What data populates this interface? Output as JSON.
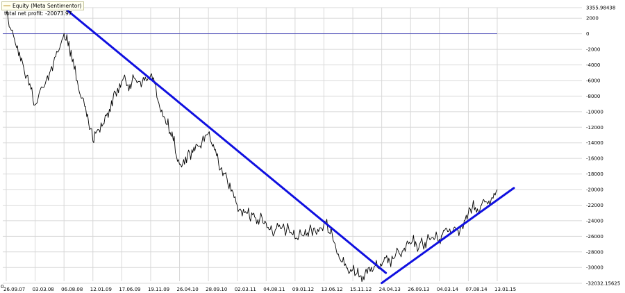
{
  "legend": {
    "label": "Equity (Meta Sentimentor)",
    "color": "#b8860b"
  },
  "summary": {
    "total_net_profit_label": "total net profit: -20073.97"
  },
  "corner_marker": "0",
  "colors": {
    "equity": "#000000",
    "trend": "#1010e0",
    "zero_line": "#2b2bb0",
    "grid": "#d8d8d8"
  },
  "chart_data": {
    "type": "line",
    "title": "",
    "xlabel": "",
    "ylabel": "",
    "ylim": [
      -32032.15625,
      3355.98438
    ],
    "grid": true,
    "legend_position": "top-left",
    "y_axis_labels": [
      {
        "value": 3355.98438,
        "text": "3355.98438"
      },
      {
        "value": 2000,
        "text": "2000"
      },
      {
        "value": 0,
        "text": "0"
      },
      {
        "value": -2000,
        "text": "-2000"
      },
      {
        "value": -4000,
        "text": "-4000"
      },
      {
        "value": -6000,
        "text": "-6000"
      },
      {
        "value": -8000,
        "text": "-8000"
      },
      {
        "value": -10000,
        "text": "-10000"
      },
      {
        "value": -12000,
        "text": "-12000"
      },
      {
        "value": -14000,
        "text": "-14000"
      },
      {
        "value": -16000,
        "text": "-16000"
      },
      {
        "value": -18000,
        "text": "-18000"
      },
      {
        "value": -20000,
        "text": "-20000"
      },
      {
        "value": -22000,
        "text": "-22000"
      },
      {
        "value": -24000,
        "text": "-24000"
      },
      {
        "value": -26000,
        "text": "-26000"
      },
      {
        "value": -28000,
        "text": "-28000"
      },
      {
        "value": -30000,
        "text": "-30000"
      },
      {
        "value": -32032.15625,
        "text": "-32032.15625"
      }
    ],
    "x_tick_labels": [
      "26.09.07",
      "03.03.08",
      "06.08.08",
      "12.01.09",
      "17.06.09",
      "19.11.09",
      "26.04.10",
      "28.09.10",
      "02.03.11",
      "04.08.11",
      "09.01.12",
      "13.06.12",
      "15.11.12",
      "24.04.13",
      "26.09.13",
      "04.03.14",
      "07.08.14",
      "13.01.15"
    ],
    "series": [
      {
        "x": [
          "26.09.07",
          "03.03.08",
          "06.08.08",
          "12.01.09",
          "17.06.09",
          "19.11.09",
          "26.04.10",
          "28.09.10",
          "02.03.11",
          "04.08.11",
          "09.01.12",
          "13.06.12",
          "15.11.12",
          "24.04.13",
          "26.09.13",
          "04.03.14",
          "07.08.14",
          "13.01.15"
        ],
        "values": [
          2800,
          -9000,
          0,
          -13500,
          -6500,
          -5500,
          -17000,
          -13000,
          -22000,
          -24500,
          -26000,
          -24500,
          -30800,
          -30000,
          -27500,
          -26000,
          -23500,
          -20000
        ]
      }
    ],
    "overlays": [
      {
        "type": "horizontal-line",
        "y": 0
      },
      {
        "type": "trendline",
        "from": {
          "x": "06.08.08",
          "y": 3355
        },
        "to": {
          "x": "24.04.13",
          "y": -30700
        }
      },
      {
        "type": "trendline",
        "from": {
          "x": "24.04.13",
          "y": -32000
        },
        "to": {
          "x": "13.01.15",
          "y": -19800
        }
      }
    ]
  }
}
